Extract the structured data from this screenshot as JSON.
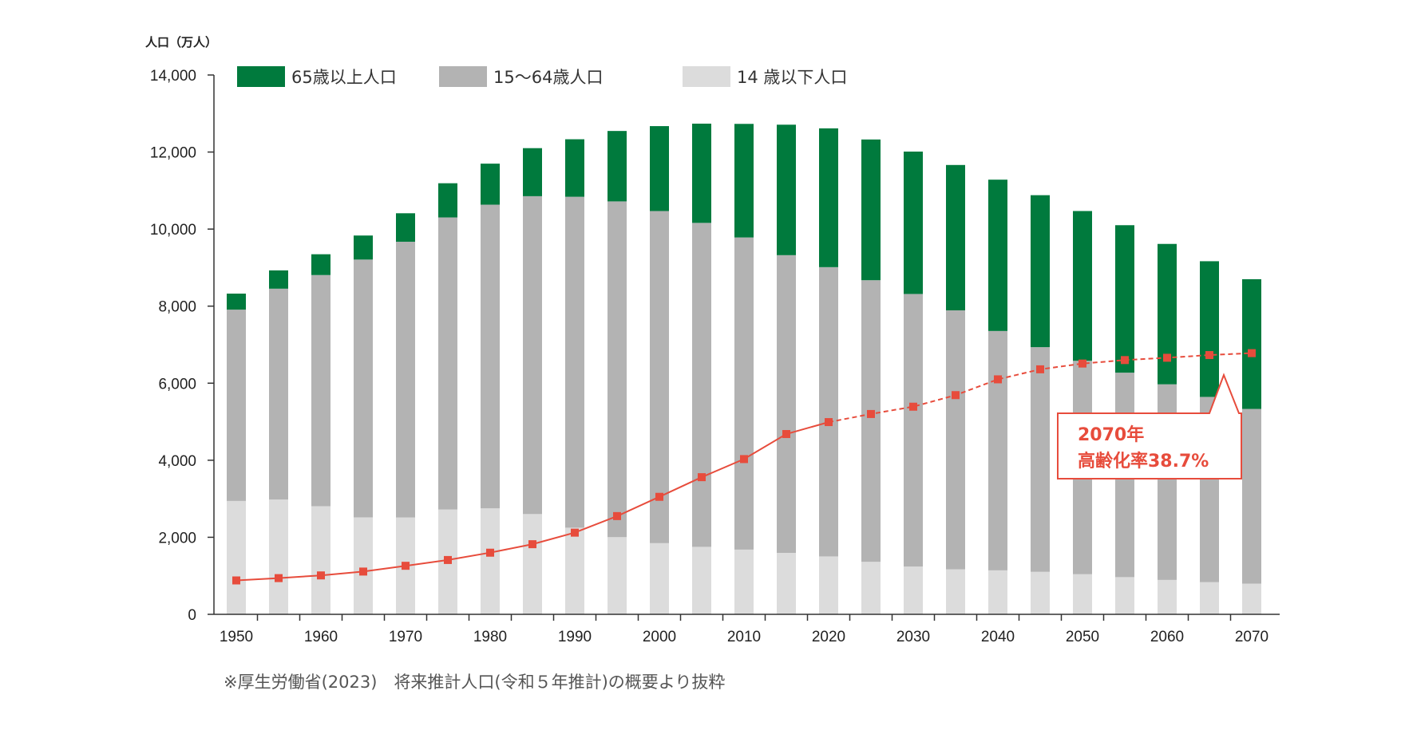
{
  "chart_data": {
    "type": "bar",
    "stacked": true,
    "ylabel": "人口（万人）",
    "ylim": [
      0,
      14000
    ],
    "yticks": [
      0,
      2000,
      4000,
      6000,
      8000,
      10000,
      12000,
      14000
    ],
    "ytick_labels": [
      "0",
      "2,000",
      "4,000",
      "6,000",
      "8,000",
      "10,000",
      "12,000",
      "14,000"
    ],
    "categories": [
      1950,
      1955,
      1960,
      1965,
      1970,
      1975,
      1980,
      1985,
      1990,
      1995,
      2000,
      2005,
      2010,
      2015,
      2020,
      2025,
      2030,
      2035,
      2040,
      2045,
      2050,
      2055,
      2060,
      2065,
      2070
    ],
    "xtick_labels": [
      "1950",
      "",
      "1960",
      "",
      "1970",
      "",
      "1980",
      "",
      "1990",
      "",
      "2000",
      "",
      "2010",
      "",
      "2020",
      "",
      "2030",
      "",
      "2040",
      "",
      "2050",
      "",
      "2060",
      "",
      "2070"
    ],
    "series": [
      {
        "name": "14 歳以下人口",
        "color": "#dcdcdc",
        "values": [
          2943,
          2980,
          2807,
          2517,
          2515,
          2722,
          2751,
          2603,
          2249,
          2003,
          1847,
          1752,
          1680,
          1595,
          1503,
          1363,
          1240,
          1169,
          1142,
          1103,
          1041,
          966,
          893,
          835,
          797
        ]
      },
      {
        "name": "15～64歳人口",
        "color": "#b3b3b3",
        "values": [
          4966,
          5473,
          6000,
          6692,
          7157,
          7581,
          7883,
          8251,
          8590,
          8716,
          8622,
          8409,
          8103,
          7728,
          7509,
          7310,
          7076,
          6722,
          6213,
          5832,
          5540,
          5307,
          5078,
          4809,
          4535
        ]
      },
      {
        "name": "65歳以上人口",
        "color": "#007a3d",
        "values": [
          416,
          475,
          540,
          624,
          739,
          887,
          1065,
          1247,
          1493,
          1828,
          2204,
          2576,
          2948,
          3387,
          3603,
          3653,
          3696,
          3773,
          3928,
          3945,
          3888,
          3828,
          3644,
          3522,
          3367
        ]
      }
    ],
    "line": {
      "name": "高齢化率",
      "color": "#e74c3c",
      "plotted_values": [
        880,
        940,
        1010,
        1110,
        1260,
        1410,
        1600,
        1820,
        2120,
        2550,
        3050,
        3560,
        4030,
        4680,
        4990,
        5200,
        5390,
        5690,
        6100,
        6360,
        6510,
        6600,
        6660,
        6730,
        6780
      ],
      "projection_from": "2020"
    },
    "legend": {
      "placement": "top",
      "order": [
        "65歳以上人口",
        "15～64歳人口",
        "14 歳以下人口"
      ]
    },
    "annotation": {
      "line1": "2070年",
      "line2": "高齢化率38.7%",
      "points_to": "2070"
    },
    "note": "※厚生労働省(2023)　将来推計人口(令和５年推計)の概要より抜粋",
    "grid": false
  }
}
